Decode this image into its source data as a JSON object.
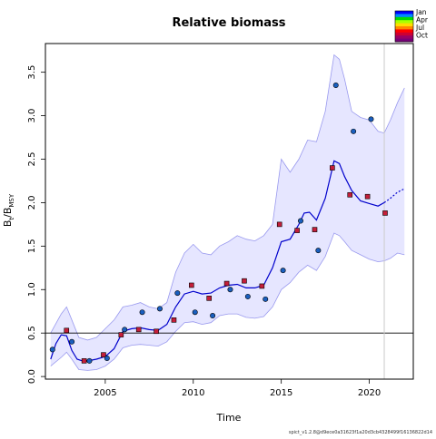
{
  "chart_data": {
    "type": "line",
    "title": "Relative biomass",
    "xlabel": "Time",
    "ylabel": "B_t/B_MSY",
    "ylabel_main": "B",
    "ylabel_sub1": "t",
    "ylabel_sep": "/B",
    "ylabel_sub2": "MSY",
    "xlim": [
      2001.6,
      2022.5
    ],
    "ylim": [
      -0.03,
      3.83
    ],
    "x_ticks": [
      2005,
      2010,
      2015,
      2020
    ],
    "y_ticks": [
      0.0,
      0.5,
      1.0,
      1.5,
      2.0,
      2.5,
      3.0,
      3.5
    ],
    "y_tick_labels": [
      "0.0",
      "0.5",
      "1.0",
      "1.5",
      "2.0",
      "2.5",
      "3.0",
      "3.5"
    ],
    "reference_line_y": 0.5,
    "last_observation_x": 2020.85,
    "grid": false,
    "legend_position": "top-right",
    "season_legend": {
      "labels": [
        "Jan",
        "Apr",
        "Jul",
        "Oct"
      ],
      "colors": [
        "#0000ff",
        "#0088ff",
        "#00dd00",
        "#aaff00",
        "#ffdd00",
        "#ff8800",
        "#ff0000",
        "#cc0033",
        "#990066",
        "#770077"
      ]
    },
    "colors": {
      "line": "#0000cc",
      "band_fill": "#e6e6ff",
      "band_edge": "#9999ee",
      "point_edge": "#000000"
    },
    "estimate": {
      "x": [
        2001.9,
        2002.2,
        2002.5,
        2002.8,
        2003.1,
        2003.4,
        2003.7,
        2004.0,
        2004.5,
        2005.0,
        2005.5,
        2006.0,
        2006.5,
        2007.0,
        2007.5,
        2008.0,
        2008.5,
        2009.0,
        2009.5,
        2010.0,
        2010.5,
        2011.0,
        2011.5,
        2012.0,
        2012.5,
        2013.0,
        2013.5,
        2014.0,
        2014.5,
        2015.0,
        2015.5,
        2016.0,
        2016.3,
        2016.6,
        2017.0,
        2017.5,
        2018.0,
        2018.3,
        2018.6,
        2019.0,
        2019.5,
        2020.0,
        2020.5,
        2020.85
      ],
      "y": [
        0.2,
        0.38,
        0.48,
        0.47,
        0.3,
        0.2,
        0.18,
        0.18,
        0.2,
        0.23,
        0.32,
        0.52,
        0.55,
        0.56,
        0.54,
        0.53,
        0.6,
        0.8,
        0.95,
        0.98,
        0.95,
        0.96,
        1.02,
        1.05,
        1.06,
        1.02,
        1.02,
        1.05,
        1.25,
        1.55,
        1.58,
        1.75,
        1.88,
        1.89,
        1.8,
        2.05,
        2.48,
        2.45,
        2.3,
        2.14,
        2.02,
        1.99,
        1.96,
        2.0
      ]
    },
    "forecast": {
      "x": [
        2020.85,
        2021.2,
        2021.6,
        2022.0
      ],
      "y": [
        2.0,
        2.05,
        2.12,
        2.16
      ]
    },
    "ci_upper": {
      "x": [
        2001.9,
        2002.5,
        2002.8,
        2003.1,
        2003.5,
        2004.0,
        2004.5,
        2005.0,
        2005.5,
        2006.0,
        2006.5,
        2007.0,
        2007.5,
        2008.0,
        2008.5,
        2009.0,
        2009.5,
        2010.0,
        2010.5,
        2011.0,
        2011.5,
        2012.0,
        2012.5,
        2013.0,
        2013.5,
        2014.0,
        2014.5,
        2015.0,
        2015.5,
        2016.0,
        2016.5,
        2017.0,
        2017.5,
        2018.0,
        2018.3,
        2018.6,
        2019.0,
        2019.5,
        2020.0,
        2020.5,
        2020.85,
        2021.2,
        2021.6,
        2022.0
      ],
      "y": [
        0.5,
        0.72,
        0.8,
        0.65,
        0.45,
        0.42,
        0.45,
        0.55,
        0.65,
        0.8,
        0.82,
        0.85,
        0.8,
        0.78,
        0.85,
        1.2,
        1.42,
        1.52,
        1.42,
        1.4,
        1.5,
        1.55,
        1.62,
        1.58,
        1.56,
        1.62,
        1.75,
        2.5,
        2.35,
        2.5,
        2.72,
        2.7,
        3.05,
        3.7,
        3.65,
        3.42,
        3.05,
        2.98,
        2.95,
        2.82,
        2.8,
        2.95,
        3.15,
        3.32
      ]
    },
    "ci_lower": {
      "x": [
        2001.9,
        2002.5,
        2002.8,
        2003.1,
        2003.5,
        2004.0,
        2004.5,
        2005.0,
        2005.5,
        2006.0,
        2006.5,
        2007.0,
        2007.5,
        2008.0,
        2008.5,
        2009.0,
        2009.5,
        2010.0,
        2010.5,
        2011.0,
        2011.5,
        2012.0,
        2012.5,
        2013.0,
        2013.5,
        2014.0,
        2014.5,
        2015.0,
        2015.5,
        2016.0,
        2016.5,
        2017.0,
        2017.5,
        2018.0,
        2018.3,
        2018.6,
        2019.0,
        2019.5,
        2020.0,
        2020.5,
        2020.85,
        2021.2,
        2021.6,
        2022.0
      ],
      "y": [
        0.12,
        0.22,
        0.28,
        0.2,
        0.08,
        0.07,
        0.08,
        0.12,
        0.2,
        0.33,
        0.36,
        0.37,
        0.36,
        0.35,
        0.4,
        0.52,
        0.62,
        0.63,
        0.6,
        0.62,
        0.7,
        0.72,
        0.72,
        0.68,
        0.67,
        0.69,
        0.8,
        1.0,
        1.08,
        1.2,
        1.28,
        1.22,
        1.38,
        1.65,
        1.62,
        1.55,
        1.45,
        1.4,
        1.35,
        1.32,
        1.33,
        1.36,
        1.42,
        1.4
      ]
    },
    "observations": [
      {
        "x": 2002.0,
        "y": 0.31,
        "shape": "circle",
        "color": "#1a5fbf"
      },
      {
        "x": 2002.8,
        "y": 0.53,
        "shape": "square",
        "color": "#c41e3a"
      },
      {
        "x": 2003.1,
        "y": 0.4,
        "shape": "circle",
        "color": "#1a5fbf"
      },
      {
        "x": 2003.8,
        "y": 0.18,
        "shape": "square",
        "color": "#c41e3a"
      },
      {
        "x": 2004.1,
        "y": 0.18,
        "shape": "circle",
        "color": "#1a5fbf"
      },
      {
        "x": 2004.9,
        "y": 0.25,
        "shape": "square",
        "color": "#c41e3a"
      },
      {
        "x": 2005.1,
        "y": 0.21,
        "shape": "circle",
        "color": "#1a5fbf"
      },
      {
        "x": 2005.9,
        "y": 0.48,
        "shape": "square",
        "color": "#c41e3a"
      },
      {
        "x": 2006.1,
        "y": 0.54,
        "shape": "circle",
        "color": "#1a5fbf"
      },
      {
        "x": 2006.9,
        "y": 0.54,
        "shape": "square",
        "color": "#c41e3a"
      },
      {
        "x": 2007.1,
        "y": 0.74,
        "shape": "circle",
        "color": "#1a5fbf"
      },
      {
        "x": 2007.9,
        "y": 0.52,
        "shape": "square",
        "color": "#c41e3a"
      },
      {
        "x": 2008.1,
        "y": 0.78,
        "shape": "circle",
        "color": "#1a5fbf"
      },
      {
        "x": 2008.9,
        "y": 0.65,
        "shape": "square",
        "color": "#c41e3a"
      },
      {
        "x": 2009.1,
        "y": 0.96,
        "shape": "circle",
        "color": "#1a5fbf"
      },
      {
        "x": 2009.9,
        "y": 1.05,
        "shape": "square",
        "color": "#c41e3a"
      },
      {
        "x": 2010.1,
        "y": 0.74,
        "shape": "circle",
        "color": "#1a5fbf"
      },
      {
        "x": 2010.9,
        "y": 0.9,
        "shape": "square",
        "color": "#c41e3a"
      },
      {
        "x": 2011.1,
        "y": 0.7,
        "shape": "circle",
        "color": "#1a5fbf"
      },
      {
        "x": 2011.9,
        "y": 1.07,
        "shape": "square",
        "color": "#c41e3a"
      },
      {
        "x": 2012.1,
        "y": 1.0,
        "shape": "circle",
        "color": "#1a5fbf"
      },
      {
        "x": 2012.9,
        "y": 1.1,
        "shape": "square",
        "color": "#c41e3a"
      },
      {
        "x": 2013.1,
        "y": 0.92,
        "shape": "circle",
        "color": "#1a5fbf"
      },
      {
        "x": 2013.9,
        "y": 1.04,
        "shape": "square",
        "color": "#c41e3a"
      },
      {
        "x": 2014.1,
        "y": 0.89,
        "shape": "circle",
        "color": "#1a5fbf"
      },
      {
        "x": 2014.9,
        "y": 1.75,
        "shape": "square",
        "color": "#c41e3a"
      },
      {
        "x": 2015.1,
        "y": 1.22,
        "shape": "circle",
        "color": "#1a5fbf"
      },
      {
        "x": 2015.9,
        "y": 1.68,
        "shape": "square",
        "color": "#c41e3a"
      },
      {
        "x": 2016.1,
        "y": 1.79,
        "shape": "circle",
        "color": "#1a5fbf"
      },
      {
        "x": 2016.9,
        "y": 1.69,
        "shape": "square",
        "color": "#c41e3a"
      },
      {
        "x": 2017.1,
        "y": 1.45,
        "shape": "circle",
        "color": "#1a5fbf"
      },
      {
        "x": 2017.9,
        "y": 2.4,
        "shape": "square",
        "color": "#c41e3a"
      },
      {
        "x": 2018.1,
        "y": 3.35,
        "shape": "circle",
        "color": "#1a5fbf"
      },
      {
        "x": 2018.9,
        "y": 2.09,
        "shape": "square",
        "color": "#c41e3a"
      },
      {
        "x": 2019.1,
        "y": 2.82,
        "shape": "circle",
        "color": "#1a5fbf"
      },
      {
        "x": 2019.9,
        "y": 2.07,
        "shape": "square",
        "color": "#c41e3a"
      },
      {
        "x": 2020.1,
        "y": 2.96,
        "shape": "circle",
        "color": "#1a5fbf"
      },
      {
        "x": 2020.9,
        "y": 1.88,
        "shape": "square",
        "color": "#c41e3a"
      }
    ]
  },
  "footer_text": "spict_v1.2.8@d9ece0a31623f1a20d3cb4328499f16136822d14"
}
